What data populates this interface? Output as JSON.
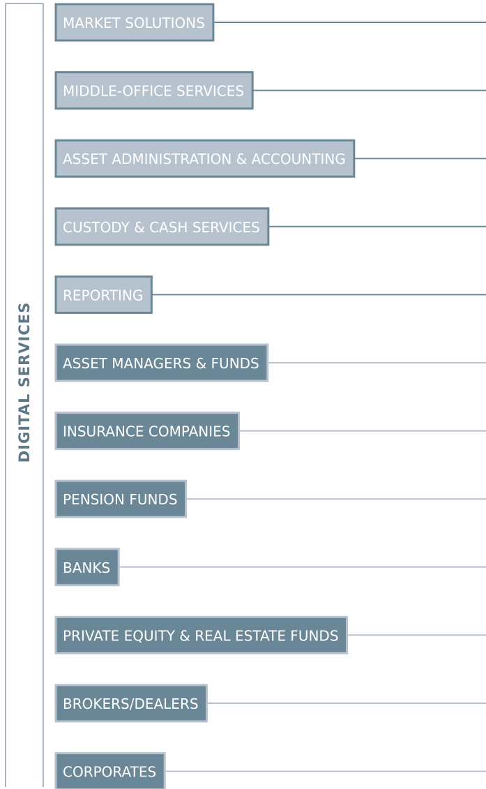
{
  "label": "DIGITAL SERVICES",
  "services": [
    "MARKET SOLUTIONS",
    "MIDDLE-OFFICE SERVICES",
    "ASSET ADMINISTRATION & ACCOUNTING",
    "CUSTODY & CASH SERVICES",
    "REPORTING"
  ],
  "clients": [
    "ASSET MANAGERS & FUNDS",
    "INSURANCE COMPANIES",
    "PENSION FUNDS",
    "BANKS",
    "PRIVATE EQUITY & REAL ESTATE FUNDS",
    "BROKERS/DEALERS",
    "CORPORATES"
  ]
}
